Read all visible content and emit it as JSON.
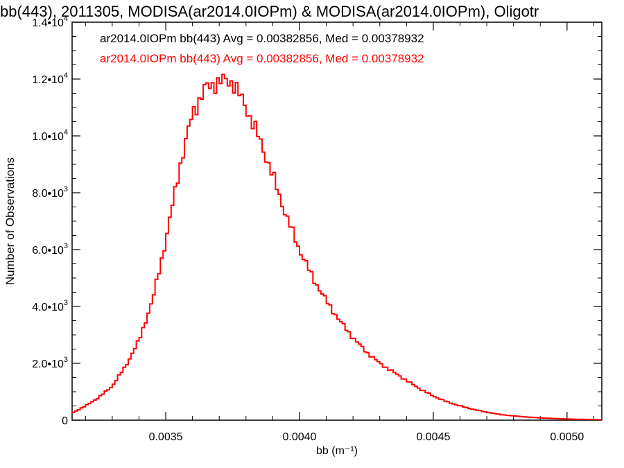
{
  "chart_data": {
    "type": "line",
    "step": true,
    "title": "bb(443), 2011305, MODISA(ar2014.0IOPm) & MODISA(ar2014.0IOPm), Oligotr",
    "xlabel": "bb (m⁻¹)",
    "ylabel": "Number of Observations",
    "xlim": [
      0.00315,
      0.00513
    ],
    "ylim": [
      0,
      14000
    ],
    "x_ticks": [
      {
        "value": 0.0035,
        "label": "0.0035"
      },
      {
        "value": 0.004,
        "label": "0.0040"
      },
      {
        "value": 0.0045,
        "label": "0.0045"
      },
      {
        "value": 0.005,
        "label": "0.0050"
      }
    ],
    "y_ticks": [
      {
        "value": 0,
        "mant": "0",
        "exp": ""
      },
      {
        "value": 2000,
        "mant": "2.0•1",
        "exp": "3"
      },
      {
        "value": 4000,
        "mant": "4.0•1",
        "exp": "3"
      },
      {
        "value": 6000,
        "mant": "6.0•1",
        "exp": "3"
      },
      {
        "value": 8000,
        "mant": "8.0•1",
        "exp": "3"
      },
      {
        "value": 10000,
        "mant": "1.0•1",
        "exp": "4"
      },
      {
        "value": 12000,
        "mant": "1.2•1",
        "exp": "4"
      },
      {
        "value": 14000,
        "mant": "1.4•1",
        "exp": "4"
      }
    ],
    "legend": [
      {
        "text": "ar2014.0IOPm bb(443) Avg = 0.00382856, Med = 0.00378932",
        "color": "#000000"
      },
      {
        "text": "ar2014.0IOPm bb(443) Avg = 0.00382856, Med = 0.00378932",
        "color": "#ff0000"
      }
    ],
    "legend_position": "top-left",
    "grid": false,
    "series": [
      {
        "color": "#ff0000",
        "x": [
          0.00315,
          0.0032,
          0.00325,
          0.0033,
          0.00335,
          0.0034,
          0.00345,
          0.0035,
          0.00355,
          0.0036,
          0.00365,
          0.0037,
          0.00372,
          0.00375,
          0.0038,
          0.00385,
          0.0039,
          0.00395,
          0.004,
          0.00405,
          0.0041,
          0.00415,
          0.0042,
          0.00425,
          0.0043,
          0.00435,
          0.0044,
          0.00445,
          0.0045,
          0.00455,
          0.0046,
          0.00465,
          0.0047,
          0.00475,
          0.0048,
          0.00485,
          0.0049,
          0.00495,
          0.005,
          0.00505,
          0.0051,
          0.00513
        ],
        "y": [
          250,
          500,
          800,
          1200,
          1900,
          2800,
          4200,
          6300,
          8800,
          10800,
          11700,
          11900,
          11950,
          11900,
          11000,
          9900,
          8600,
          7200,
          6000,
          5000,
          4200,
          3500,
          2900,
          2400,
          2000,
          1700,
          1400,
          1100,
          850,
          650,
          500,
          380,
          280,
          200,
          150,
          110,
          80,
          60,
          40,
          30,
          20,
          15
        ]
      }
    ]
  }
}
